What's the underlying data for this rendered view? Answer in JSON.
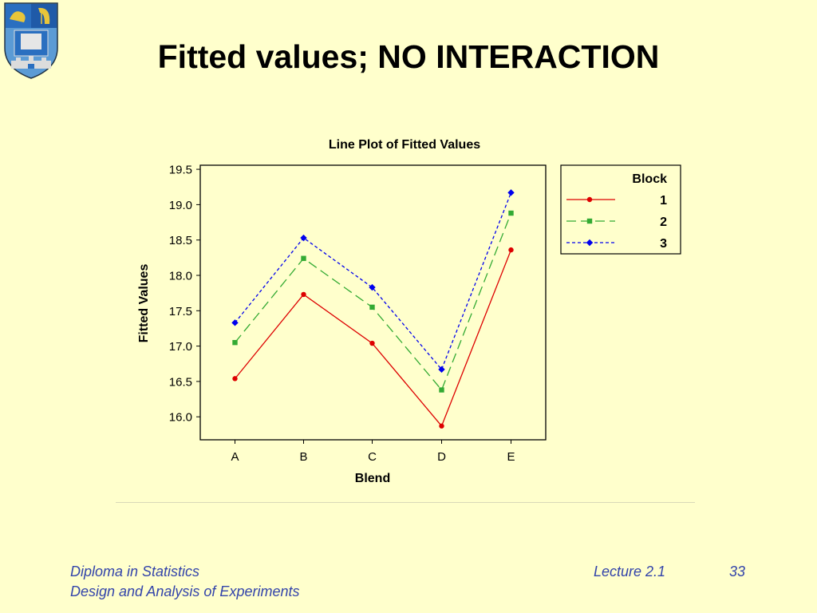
{
  "slide": {
    "title": "Fitted values; NO INTERACTION",
    "footer": {
      "course": "Diploma in Statistics",
      "module": "Design and Analysis of Experiments",
      "lecture": "Lecture 2.1",
      "page": "33"
    }
  },
  "colors": {
    "background": "#ffffcc",
    "footer_text": "#3344aa",
    "series_1": "#dd0000",
    "series_2": "#33aa33",
    "series_3": "#0000ee"
  },
  "chart_data": {
    "type": "line",
    "title": "Line Plot of Fitted Values",
    "xlabel": "Blend",
    "ylabel": "Fitted Values",
    "categories": [
      "A",
      "B",
      "C",
      "D",
      "E"
    ],
    "ylim": [
      15.87,
      19.54
    ],
    "yticks": [
      16.0,
      16.5,
      17.0,
      17.5,
      18.0,
      18.5,
      19.0,
      19.5
    ],
    "ytick_labels": [
      "16.0",
      "16.5",
      "17.0",
      "17.5",
      "18.0",
      "18.5",
      "19.0",
      "19.5"
    ],
    "grid": false,
    "legend": {
      "title": "Block",
      "position": "right"
    },
    "series": [
      {
        "name": "1",
        "values": [
          16.54,
          17.73,
          17.04,
          15.87,
          18.36
        ],
        "color": "#dd0000",
        "marker": "circle",
        "dash": "solid"
      },
      {
        "name": "2",
        "values": [
          17.05,
          18.24,
          17.55,
          16.38,
          18.88
        ],
        "color": "#33aa33",
        "marker": "square",
        "dash": "longdash"
      },
      {
        "name": "3",
        "values": [
          17.33,
          18.53,
          17.83,
          16.67,
          19.17
        ],
        "color": "#0000ee",
        "marker": "diamond",
        "dash": "shortdash"
      }
    ]
  }
}
